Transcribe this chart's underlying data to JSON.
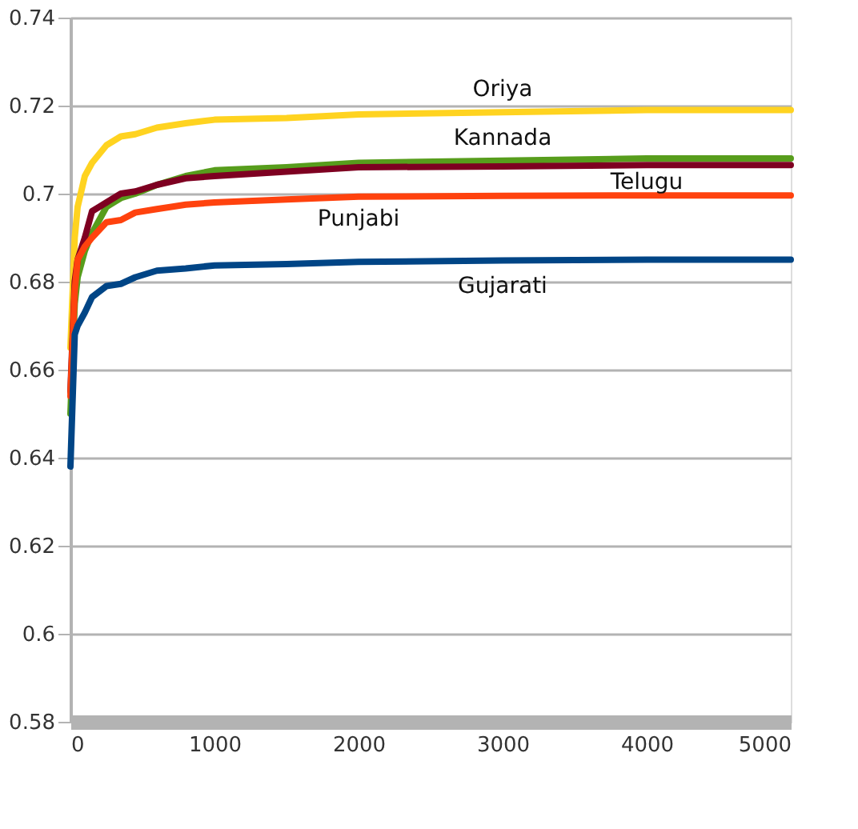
{
  "chart_data": {
    "type": "line",
    "x": [
      0,
      30,
      50,
      100,
      150,
      250,
      350,
      450,
      600,
      800,
      1000,
      1500,
      2000,
      3000,
      4000,
      5000
    ],
    "series": [
      {
        "name": "Oriya",
        "color": "#ffd320",
        "values": [
          0.665,
          0.69,
          0.697,
          0.704,
          0.707,
          0.711,
          0.713,
          0.7135,
          0.715,
          0.716,
          0.7168,
          0.7172,
          0.718,
          0.7185,
          0.719,
          0.719
        ]
      },
      {
        "name": "Kannada",
        "color": "#579d1c",
        "values": [
          0.65,
          0.675,
          0.681,
          0.687,
          0.691,
          0.697,
          0.699,
          0.7,
          0.702,
          0.704,
          0.7053,
          0.706,
          0.707,
          0.7075,
          0.708,
          0.708
        ]
      },
      {
        "name": "Telugu",
        "color": "#7e0021",
        "values": [
          0.655,
          0.68,
          0.685,
          0.69,
          0.696,
          0.698,
          0.7,
          0.7005,
          0.702,
          0.7035,
          0.704,
          0.705,
          0.706,
          0.7062,
          0.7065,
          0.7065
        ]
      },
      {
        "name": "Punjabi",
        "color": "#ff420e",
        "values": [
          0.654,
          0.678,
          0.685,
          0.688,
          0.69,
          0.6935,
          0.694,
          0.6957,
          0.6965,
          0.6975,
          0.698,
          0.6987,
          0.6993,
          0.6995,
          0.6996,
          0.6996
        ]
      },
      {
        "name": "Gujarati",
        "color": "#004586",
        "values": [
          0.638,
          0.668,
          0.67,
          0.673,
          0.6765,
          0.679,
          0.6795,
          0.681,
          0.6825,
          0.683,
          0.6837,
          0.684,
          0.6845,
          0.6848,
          0.685,
          0.685
        ]
      }
    ],
    "xlim": [
      0,
      5000
    ],
    "xticks": [
      0,
      1000,
      2000,
      3000,
      4000,
      5000
    ],
    "ylim": [
      0.58,
      0.74
    ],
    "yticks": [
      0.58,
      0.6,
      0.62,
      0.64,
      0.66,
      0.68,
      0.7,
      0.72,
      0.74
    ],
    "grid": "y",
    "legend": false,
    "marker": "none",
    "line_style": "solid"
  }
}
